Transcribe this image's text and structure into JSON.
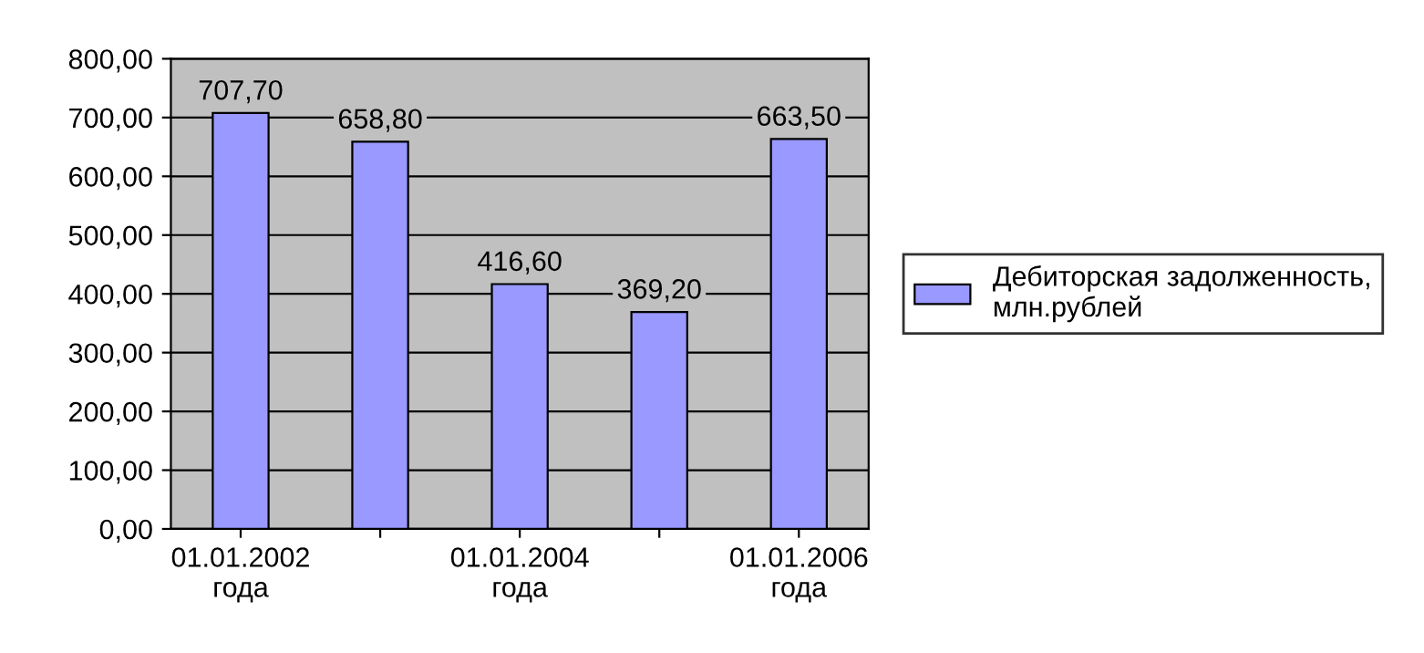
{
  "chart_data": {
    "type": "bar",
    "categories": [
      "01.01.2002\nгода",
      null,
      "01.01.2004\nгода",
      null,
      "01.01.2006\nгода"
    ],
    "series": [
      {
        "name": "Дебиторская задолженность,\nмлн.рублей",
        "color": "#9999ff",
        "values": [
          707.7,
          658.8,
          416.6,
          369.2,
          663.5
        ],
        "value_labels": [
          "707,70",
          "658,80",
          "416,60",
          "369,20",
          "663,50"
        ]
      }
    ],
    "ylim": [
      0,
      800
    ],
    "yticks": [
      {
        "value": 0,
        "label": "0,00"
      },
      {
        "value": 100,
        "label": "100,00"
      },
      {
        "value": 200,
        "label": "200,00"
      },
      {
        "value": 300,
        "label": "300,00"
      },
      {
        "value": 400,
        "label": "400,00"
      },
      {
        "value": 500,
        "label": "500,00"
      },
      {
        "value": 600,
        "label": "600,00"
      },
      {
        "value": 700,
        "label": "700,00"
      },
      {
        "value": 800,
        "label": "800,00"
      }
    ],
    "grid": "y",
    "legend": "right"
  }
}
